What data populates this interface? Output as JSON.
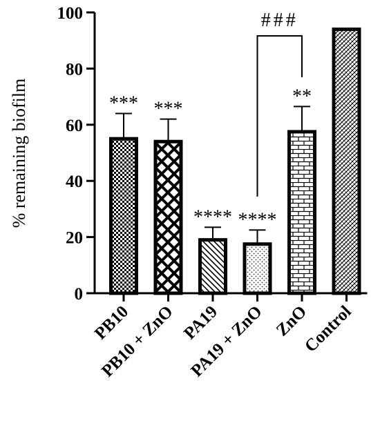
{
  "chart_data": {
    "type": "bar",
    "ylabel": "% remaining biofilm",
    "xlabel": "",
    "ylim": [
      0,
      100
    ],
    "yticks": [
      0,
      20,
      40,
      60,
      80,
      100
    ],
    "grid": false,
    "categories": [
      "PB10",
      "PB10 + ZnO",
      "PA19",
      "PA19 + ZnO",
      "ZnO",
      "Control"
    ],
    "values": [
      55,
      54,
      19,
      17.5,
      57.5,
      94
    ],
    "errors": [
      9,
      8,
      4.5,
      5,
      9,
      0
    ],
    "significance": [
      "***",
      "***",
      "****",
      "****",
      "**",
      ""
    ],
    "patterns": [
      "checker",
      "crosshatch",
      "diagonal",
      "dots",
      "brick",
      "diagonal-dense"
    ],
    "bracket": {
      "from": "PA19 + ZnO",
      "to": "ZnO",
      "label": "###"
    }
  }
}
